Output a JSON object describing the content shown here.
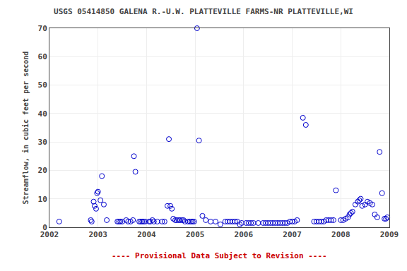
{
  "chart_data": {
    "type": "scatter",
    "title": "USGS 05414850 GALENA R.-U.W. PLATTEVILLE FARMS-NR PLATTEVILLE,WI",
    "ylabel": "Streamflow, in cubic feet per second",
    "annotation": {
      "text": "---- Provisional Data Subject to Revision ----",
      "color": "#cc0000"
    },
    "xlim": [
      2002,
      2009
    ],
    "ylim": [
      0,
      70
    ],
    "xticks": [
      2002,
      2003,
      2004,
      2005,
      2006,
      2007,
      2008,
      2009
    ],
    "yticks": [
      0,
      10,
      20,
      30,
      40,
      50,
      60,
      70
    ],
    "grid": true,
    "color": "#0000CC",
    "marker": "open_circle",
    "x": [
      2002.2,
      2002.85,
      2002.87,
      2002.91,
      2002.93,
      2002.96,
      2002.98,
      2003.0,
      2003.05,
      2003.08,
      2003.12,
      2003.18,
      2003.4,
      2003.43,
      2003.46,
      2003.5,
      2003.58,
      2003.62,
      2003.67,
      2003.72,
      2003.74,
      2003.77,
      2003.85,
      2003.88,
      2003.91,
      2003.94,
      2003.97,
      2004.05,
      2004.08,
      2004.12,
      2004.15,
      2004.22,
      2004.32,
      2004.37,
      2004.43,
      2004.46,
      2004.49,
      2004.52,
      2004.55,
      2004.59,
      2004.62,
      2004.66,
      2004.69,
      2004.73,
      2004.76,
      2004.79,
      2004.85,
      2004.89,
      2004.92,
      2004.95,
      2004.98,
      2005.04,
      2005.08,
      2005.15,
      2005.22,
      2005.32,
      2005.42,
      2005.52,
      2005.62,
      2005.67,
      2005.72,
      2005.77,
      2005.82,
      2005.87,
      2005.92,
      2005.96,
      2006.05,
      2006.1,
      2006.15,
      2006.2,
      2006.3,
      2006.4,
      2006.45,
      2006.5,
      2006.55,
      2006.6,
      2006.65,
      2006.7,
      2006.75,
      2006.8,
      2006.85,
      2006.9,
      2006.95,
      2007.0,
      2007.05,
      2007.1,
      2007.22,
      2007.28,
      2007.45,
      2007.5,
      2007.55,
      2007.6,
      2007.65,
      2007.7,
      2007.75,
      2007.8,
      2007.85,
      2007.9,
      2008.0,
      2008.05,
      2008.1,
      2008.15,
      2008.18,
      2008.21,
      2008.24,
      2008.3,
      2008.35,
      2008.38,
      2008.41,
      2008.44,
      2008.5,
      2008.55,
      2008.6,
      2008.65,
      2008.7,
      2008.75,
      2008.8,
      2008.85,
      2008.9,
      2008.93,
      2008.96
    ],
    "values": [
      2.0,
      2.5,
      2.0,
      9.0,
      7.5,
      6.5,
      12.0,
      12.5,
      9.5,
      18.0,
      8.0,
      2.5,
      2.0,
      2.0,
      2.0,
      2.0,
      2.5,
      2.0,
      2.0,
      2.5,
      25.0,
      19.5,
      2.0,
      2.0,
      2.0,
      2.0,
      2.0,
      2.0,
      2.0,
      2.5,
      2.0,
      2.0,
      2.0,
      2.0,
      7.5,
      31.0,
      7.5,
      6.5,
      3.0,
      2.5,
      2.5,
      2.5,
      2.5,
      2.5,
      2.5,
      2.0,
      2.0,
      2.0,
      2.0,
      2.0,
      2.0,
      70.0,
      30.5,
      4.0,
      2.5,
      2.0,
      2.0,
      1.0,
      2.0,
      2.0,
      2.0,
      2.0,
      2.0,
      2.0,
      1.0,
      1.5,
      1.5,
      1.5,
      1.5,
      1.5,
      1.5,
      1.5,
      1.5,
      1.5,
      1.5,
      1.5,
      1.5,
      1.5,
      1.5,
      1.5,
      1.5,
      1.5,
      2.0,
      2.0,
      2.0,
      2.5,
      38.5,
      36.0,
      2.0,
      2.0,
      2.0,
      2.0,
      2.0,
      2.5,
      2.5,
      2.5,
      2.5,
      13.0,
      2.5,
      2.5,
      3.0,
      3.5,
      4.5,
      5.0,
      5.5,
      8.0,
      9.0,
      9.5,
      10.0,
      7.5,
      8.0,
      9.0,
      8.5,
      8.0,
      4.5,
      3.5,
      26.5,
      12.0,
      3.0,
      3.0,
      3.5
    ]
  }
}
